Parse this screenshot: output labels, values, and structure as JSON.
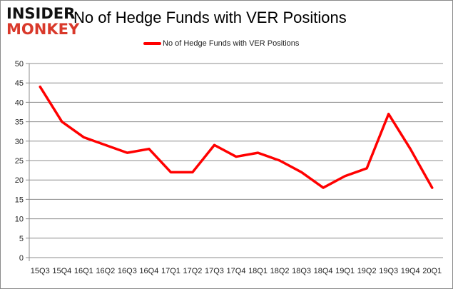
{
  "logo": {
    "line1": "INSIDER",
    "line2": "MONKEY"
  },
  "chart_data": {
    "type": "line",
    "title": "No of Hedge Funds with VER Positions",
    "categories": [
      "15Q3",
      "15Q4",
      "16Q1",
      "16Q2",
      "16Q3",
      "16Q4",
      "17Q1",
      "17Q2",
      "17Q3",
      "17Q4",
      "18Q1",
      "18Q2",
      "18Q3",
      "18Q4",
      "19Q1",
      "19Q2",
      "19Q3",
      "19Q4",
      "20Q1"
    ],
    "series": [
      {
        "name": "No of Hedge Funds with VER Positions",
        "color": "#ff0000",
        "values": [
          44,
          35,
          31,
          29,
          27,
          28,
          22,
          22,
          29,
          26,
          27,
          25,
          22,
          18,
          21,
          23,
          37,
          28,
          18
        ]
      }
    ],
    "ylim": [
      0,
      50
    ],
    "yticks": [
      0,
      5,
      10,
      15,
      20,
      25,
      30,
      35,
      40,
      45,
      50
    ],
    "grid": true,
    "legend": "top-center",
    "xlabel": "",
    "ylabel": ""
  }
}
